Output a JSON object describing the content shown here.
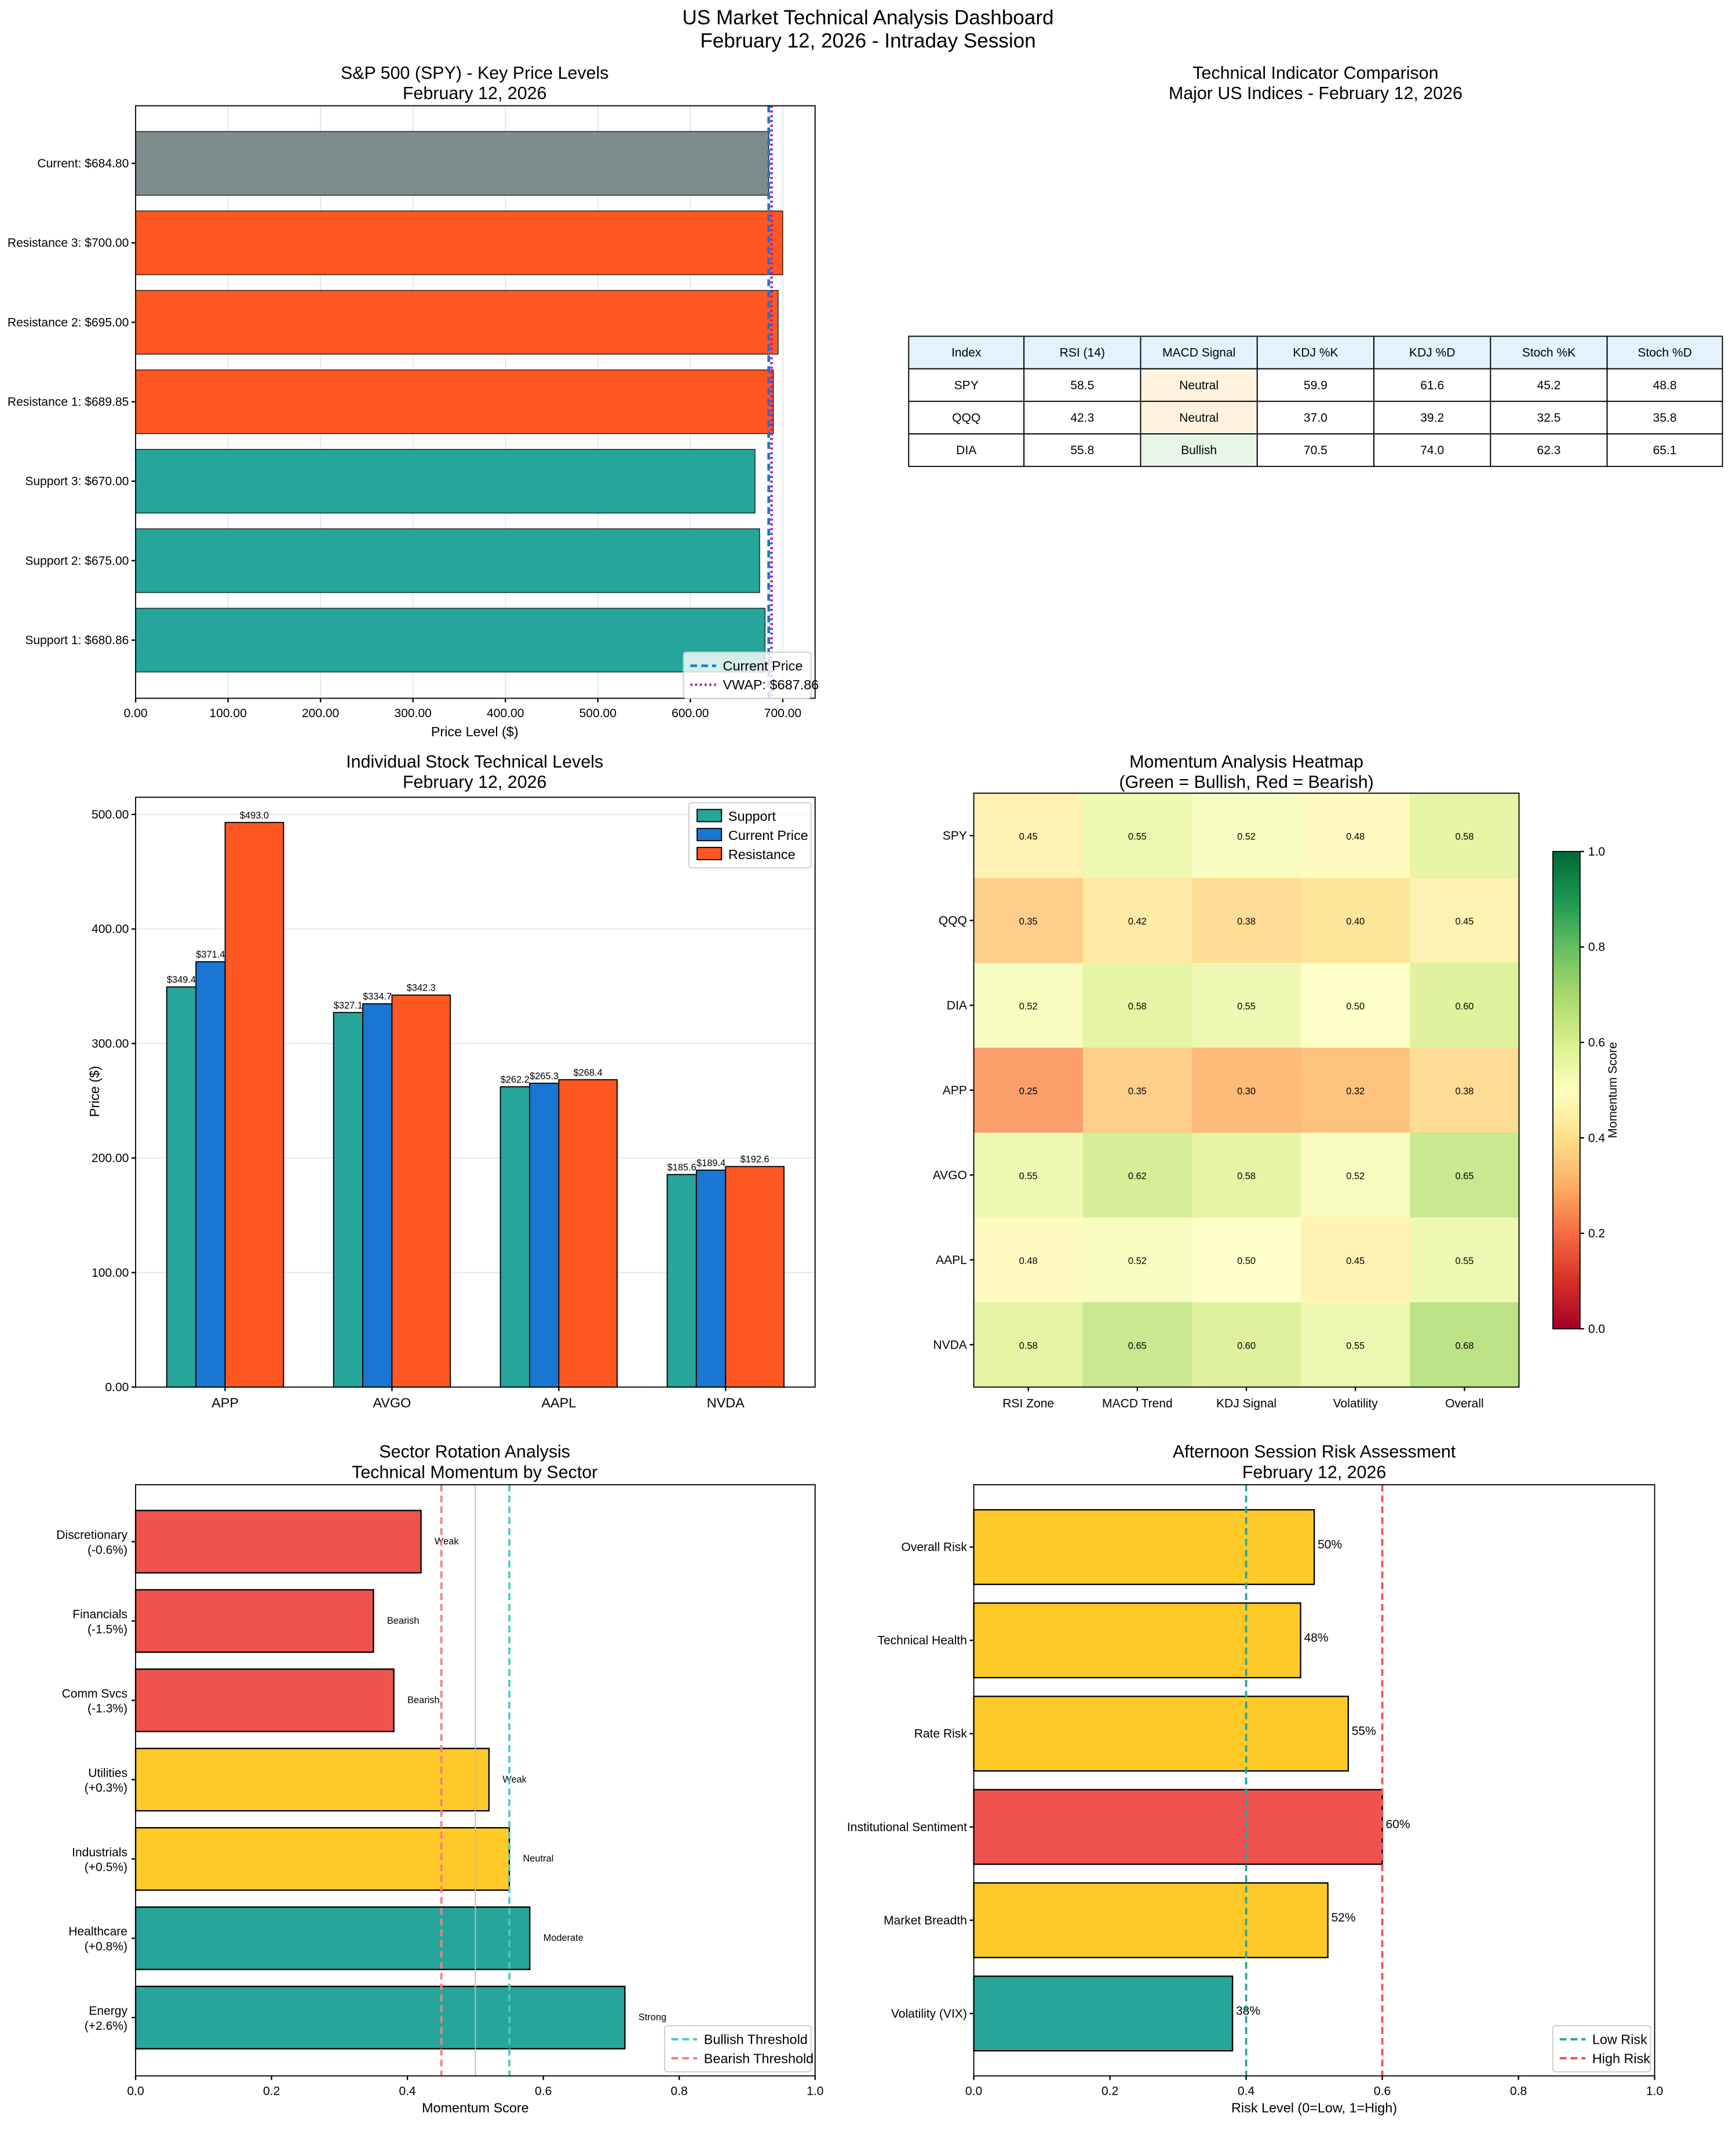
{
  "suptitle": [
    "US Market Technical Analysis Dashboard",
    "February 12, 2026 - Intraday Session"
  ],
  "chart_data": [
    {
      "type": "bar",
      "orientation": "horizontal",
      "title": [
        "S&P 500 (SPY) - Key Price Levels",
        "February 12, 2026"
      ],
      "xlabel": "Price Level ($)",
      "xlim": [
        0,
        735
      ],
      "xticks": [
        0,
        100,
        200,
        300,
        400,
        500,
        600,
        700
      ],
      "grid": "x",
      "categories": [
        "Current: $684.80",
        "Resistance 3: $700.00",
        "Resistance 2: $695.00",
        "Resistance 1: $689.85",
        "Support 3: $670.00",
        "Support 2: $675.00",
        "Support 1: $680.86"
      ],
      "values": [
        684.8,
        700.0,
        695.0,
        689.85,
        670.0,
        675.0,
        680.86
      ],
      "colors": [
        "#7f8c8d",
        "#ff5722",
        "#ff5722",
        "#ff5722",
        "#26a69a",
        "#26a69a",
        "#26a69a"
      ],
      "reference_lines": [
        {
          "name": "Current Price",
          "value": 684.8,
          "color": "#1976d2",
          "style": "dashed"
        },
        {
          "name": "VWAP: $687.86",
          "value": 687.86,
          "color": "#9c27b0",
          "style": "dotted"
        }
      ],
      "legend": "lower-right"
    },
    {
      "type": "table",
      "title": [
        "Technical Indicator Comparison",
        "Major US Indices - February 12, 2026"
      ],
      "columns": [
        "Index",
        "RSI (14)",
        "MACD Signal",
        "KDJ %K",
        "KDJ %D",
        "Stoch %K",
        "Stoch %D"
      ],
      "rows": [
        [
          "SPY",
          "58.5",
          "Neutral",
          "59.9",
          "61.6",
          "45.2",
          "48.8"
        ],
        [
          "QQQ",
          "42.3",
          "Neutral",
          "37.0",
          "39.2",
          "32.5",
          "35.8"
        ],
        [
          "DIA",
          "55.8",
          "Bullish",
          "70.5",
          "74.0",
          "62.3",
          "65.1"
        ]
      ],
      "header_color": "#e3f2fd",
      "signal_colors": {
        "Neutral": "#fff3e0",
        "Bullish": "#e8f5e9"
      }
    },
    {
      "type": "bar",
      "title": [
        "Individual Stock Technical Levels",
        "February 12, 2026"
      ],
      "ylabel": "Price ($)",
      "ylim": [
        0,
        515
      ],
      "yticks": [
        0,
        100,
        200,
        300,
        400,
        500
      ],
      "grid": "y",
      "categories": [
        "APP",
        "AVGO",
        "AAPL",
        "NVDA"
      ],
      "series": [
        {
          "name": "Support",
          "values": [
            349.4,
            327.1,
            262.2,
            185.6
          ],
          "color": "#26a69a"
        },
        {
          "name": "Current Price",
          "values": [
            371.4,
            334.7,
            265.3,
            189.4
          ],
          "color": "#1976d2"
        },
        {
          "name": "Resistance",
          "values": [
            493.0,
            342.3,
            268.4,
            192.6
          ],
          "color": "#ff5722"
        }
      ],
      "legend": "top-right"
    },
    {
      "type": "heatmap",
      "title": [
        "Momentum Analysis Heatmap",
        "(Green = Bullish, Red = Bearish)"
      ],
      "rows": [
        "SPY",
        "QQQ",
        "DIA",
        "APP",
        "AVGO",
        "AAPL",
        "NVDA"
      ],
      "columns": [
        "RSI Zone",
        "MACD Trend",
        "KDJ Signal",
        "Volatility",
        "Overall"
      ],
      "values": [
        [
          0.45,
          0.55,
          0.52,
          0.48,
          0.58
        ],
        [
          0.35,
          0.42,
          0.38,
          0.4,
          0.45
        ],
        [
          0.52,
          0.58,
          0.55,
          0.5,
          0.6
        ],
        [
          0.25,
          0.35,
          0.3,
          0.32,
          0.38
        ],
        [
          0.55,
          0.62,
          0.58,
          0.52,
          0.65
        ],
        [
          0.48,
          0.52,
          0.5,
          0.45,
          0.55
        ],
        [
          0.58,
          0.65,
          0.6,
          0.55,
          0.68
        ]
      ],
      "colormap": "RdYlGn",
      "vrange": [
        0,
        1
      ],
      "colorbar_label": "Momentum Score",
      "colorbar_ticks": [
        "0.0",
        "0.2",
        "0.4",
        "0.6",
        "0.8",
        "1.0"
      ]
    },
    {
      "type": "bar",
      "orientation": "horizontal",
      "title": [
        "Sector Rotation Analysis",
        "Technical Momentum by Sector"
      ],
      "xlabel": "Momentum Score",
      "xlim": [
        0,
        1
      ],
      "xticks": [
        "0.0",
        "0.2",
        "0.4",
        "0.6",
        "0.8",
        "1.0"
      ],
      "categories": [
        [
          "Discretionary",
          "(-0.6%)"
        ],
        [
          "Financials",
          "(-1.5%)"
        ],
        [
          "Comm Svcs",
          "(-1.3%)"
        ],
        [
          "Utilities",
          "(+0.3%)"
        ],
        [
          "Industrials",
          "(+0.5%)"
        ],
        [
          "Healthcare",
          "(+0.8%)"
        ],
        [
          "Energy",
          "(+2.6%)"
        ]
      ],
      "values": [
        0.42,
        0.35,
        0.38,
        0.52,
        0.55,
        0.58,
        0.72
      ],
      "annotations": [
        "Weak",
        "Bearish",
        "Bearish",
        "Weak",
        "Neutral",
        "Moderate",
        "Strong"
      ],
      "colors": [
        "#ef5350",
        "#ef5350",
        "#ef5350",
        "#ffca28",
        "#ffca28",
        "#26a69a",
        "#26a69a"
      ],
      "reference_lines": [
        {
          "name": "Bullish Threshold",
          "value": 0.55,
          "color": "#4ec9bd",
          "style": "dashed"
        },
        {
          "name": "Bearish Threshold",
          "value": 0.45,
          "color": "#f28080",
          "style": "dashed"
        },
        {
          "name": "",
          "value": 0.5,
          "color": "#bdbdbd",
          "style": "solid"
        }
      ],
      "legend": "lower-right"
    },
    {
      "type": "bar",
      "orientation": "horizontal",
      "title": [
        "Afternoon Session Risk Assessment",
        "February 12, 2026"
      ],
      "xlabel": "Risk Level (0=Low, 1=High)",
      "xlim": [
        0,
        1
      ],
      "xticks": [
        "0.0",
        "0.2",
        "0.4",
        "0.6",
        "0.8",
        "1.0"
      ],
      "categories": [
        "Overall Risk",
        "Technical Health",
        "Rate Risk",
        "Institutional Sentiment",
        "Market Breadth",
        "Volatility (VIX)"
      ],
      "values": [
        0.5,
        0.48,
        0.55,
        0.6,
        0.52,
        0.38
      ],
      "data_labels": [
        "50%",
        "48%",
        "55%",
        "60%",
        "52%",
        "38%"
      ],
      "colors": [
        "#ffca28",
        "#ffca28",
        "#ffca28",
        "#ef5350",
        "#ffca28",
        "#26a69a"
      ],
      "reference_lines": [
        {
          "name": "Low Risk",
          "value": 0.4,
          "color": "#26a69a",
          "style": "dashed"
        },
        {
          "name": "High Risk",
          "value": 0.6,
          "color": "#ef5350",
          "style": "dashed"
        }
      ],
      "legend": "lower-right"
    }
  ]
}
